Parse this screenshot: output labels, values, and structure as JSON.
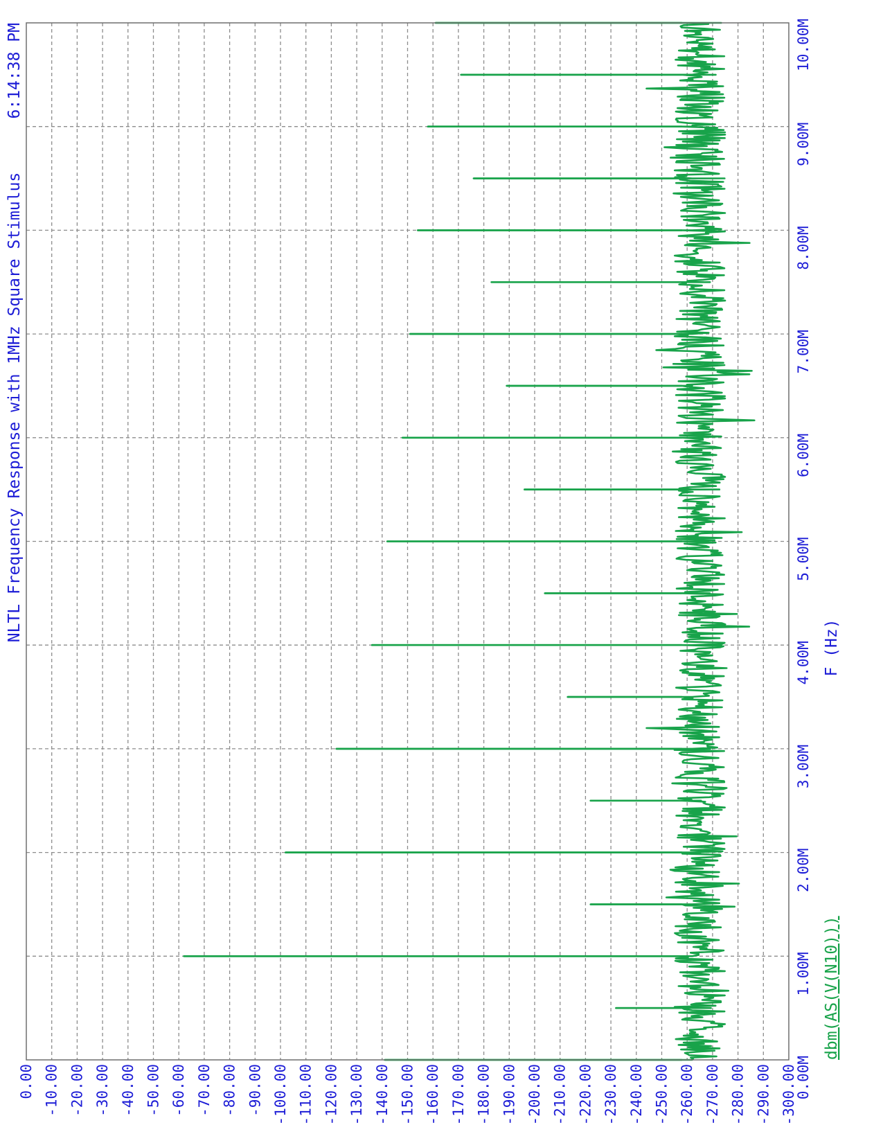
{
  "chart_data": {
    "type": "line",
    "title": "NLTL Frequency Response with 1MHz Square Stimulus",
    "timestamp": "6:14:38 PM",
    "xlabel": "F (Hz)",
    "legend": "dbm(AS(V(N10)))",
    "xlim": [
      0,
      10000000
    ],
    "ylim": [
      -300,
      0
    ],
    "grid": true,
    "x_ticks": [
      "0.00M",
      "1.00M",
      "2.00M",
      "3.00M",
      "4.00M",
      "5.00M",
      "6.00M",
      "7.00M",
      "8.00M",
      "9.00M",
      "10.00M"
    ],
    "y_ticks": [
      "0.00",
      "-10.00",
      "-20.00",
      "-30.00",
      "-40.00",
      "-50.00",
      "-60.00",
      "-70.00",
      "-80.00",
      "-90.00",
      "-100.00",
      "-110.00",
      "-120.00",
      "-130.00",
      "-140.00",
      "-150.00",
      "-160.00",
      "-170.00",
      "-180.00",
      "-190.00",
      "-200.00",
      "-210.00",
      "-220.00",
      "-230.00",
      "-240.00",
      "-250.00",
      "-260.00",
      "-270.00",
      "-280.00",
      "-290.00",
      "-300.00"
    ],
    "series": [
      {
        "name": "dbm(AS(V(N10)))",
        "color": "#18a34a",
        "noise_floor_db": [
          -275,
          -255
        ],
        "peaks": [
          {
            "f": 0,
            "db": -141
          },
          {
            "f": 500000,
            "db": -232
          },
          {
            "f": 1000000,
            "db": -62
          },
          {
            "f": 1500000,
            "db": -222
          },
          {
            "f": 2000000,
            "db": -102
          },
          {
            "f": 2500000,
            "db": -222
          },
          {
            "f": 3000000,
            "db": -122
          },
          {
            "f": 3500000,
            "db": -213
          },
          {
            "f": 4000000,
            "db": -136
          },
          {
            "f": 4500000,
            "db": -204
          },
          {
            "f": 5000000,
            "db": -142
          },
          {
            "f": 5500000,
            "db": -196
          },
          {
            "f": 6000000,
            "db": -148
          },
          {
            "f": 6500000,
            "db": -189
          },
          {
            "f": 7000000,
            "db": -151
          },
          {
            "f": 7500000,
            "db": -183
          },
          {
            "f": 8000000,
            "db": -154
          },
          {
            "f": 8500000,
            "db": -176
          },
          {
            "f": 9000000,
            "db": -158
          },
          {
            "f": 9500000,
            "db": -171
          },
          {
            "f": 10000000,
            "db": -161
          }
        ]
      }
    ]
  }
}
